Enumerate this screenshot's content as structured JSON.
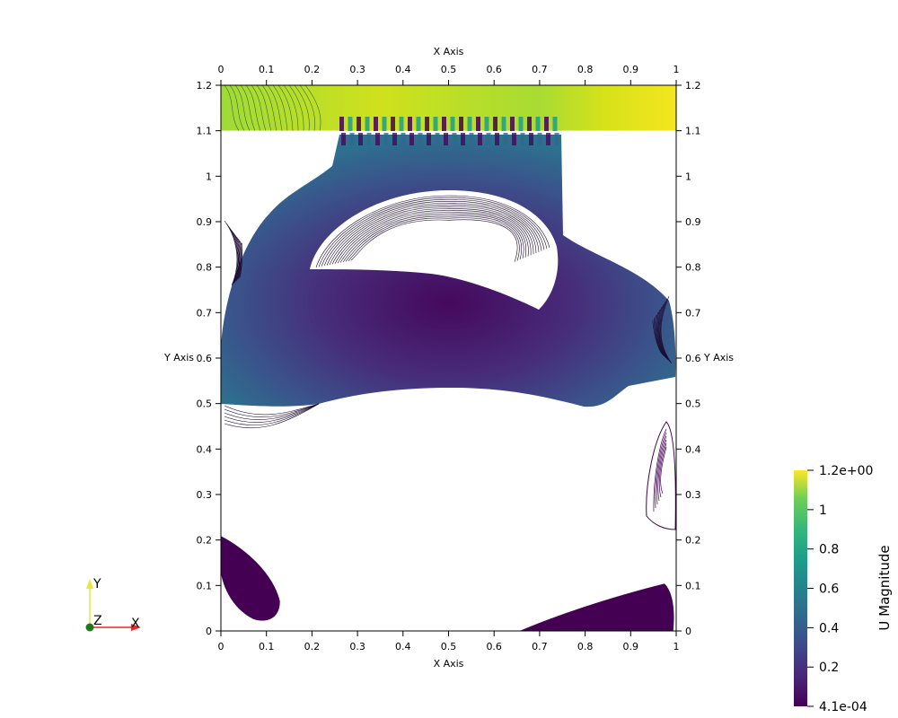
{
  "chart_data": {
    "type": "heatmap",
    "title": "",
    "xlabel": "X Axis",
    "ylabel": "Y Axis",
    "xlim": [
      0,
      1
    ],
    "ylim": [
      0,
      1.2
    ],
    "x_ticks": [
      "0",
      "0.1",
      "0.2",
      "0.3",
      "0.4",
      "0.5",
      "0.6",
      "0.7",
      "0.8",
      "0.9",
      "1"
    ],
    "y_ticks": [
      "0",
      "0.1",
      "0.2",
      "0.3",
      "0.4",
      "0.5",
      "0.6",
      "0.7",
      "0.8",
      "0.9",
      "1",
      "1.1",
      "1.2"
    ],
    "x_tick_values": [
      0,
      0.1,
      0.2,
      0.3,
      0.4,
      0.5,
      0.6,
      0.7,
      0.8,
      0.9,
      1
    ],
    "y_tick_values": [
      0,
      0.1,
      0.2,
      0.3,
      0.4,
      0.5,
      0.6,
      0.7,
      0.8,
      0.9,
      1,
      1.1,
      1.2
    ],
    "field": "U Magnitude",
    "colormap": "viridis",
    "range": [
      0.00041,
      1.2
    ],
    "colorbar": {
      "title": "U Magnitude",
      "labels": [
        "1.2e+00",
        "1",
        "0.8",
        "0.6",
        "0.4",
        "0.2",
        "4.1e-04"
      ],
      "values": [
        1.2,
        1.0,
        0.8,
        0.6,
        0.4,
        0.2,
        0.00041
      ]
    },
    "regions": [
      {
        "name": "top-channel",
        "x": [
          0,
          1
        ],
        "y": [
          1.1,
          1.2
        ],
        "value_range": [
          0.7,
          1.2
        ]
      },
      {
        "name": "main-vortex",
        "x": [
          0,
          1
        ],
        "y": [
          0.5,
          1.1
        ],
        "value_range": [
          0.05,
          0.5
        ]
      },
      {
        "name": "corner-vortex-bottom-left",
        "x": [
          0,
          0.13
        ],
        "y": [
          0,
          0.21
        ],
        "value_range": [
          0.0,
          0.02
        ]
      },
      {
        "name": "corner-vortex-bottom-right",
        "x": [
          0.65,
          1
        ],
        "y": [
          0,
          0.1
        ],
        "value_range": [
          0.0,
          0.05
        ]
      },
      {
        "name": "side-vortex-right",
        "x": [
          0.93,
          1
        ],
        "y": [
          0.23,
          0.46
        ],
        "value_range": [
          0.0,
          0.02
        ]
      }
    ]
  },
  "orientation": {
    "x_label": "X",
    "y_label": "Y",
    "z_label": "Z",
    "x_color": "#e8262c",
    "y_color": "#e8e63a",
    "z_color": "#1f7a1f"
  }
}
